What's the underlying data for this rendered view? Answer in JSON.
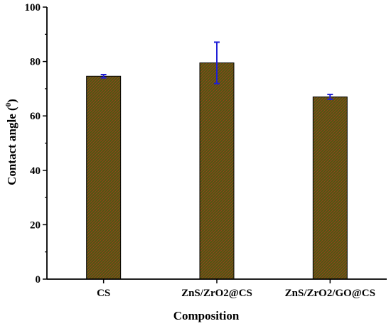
{
  "chart_data": {
    "type": "bar",
    "title": "",
    "xlabel": "Composition",
    "ylabel_main": "Contact angle (",
    "ylabel_sup": "0",
    "ylabel_end": ")",
    "categories": [
      "CS",
      "ZnS/ZrO2@CS",
      "ZnS/ZrO2/GO@CS"
    ],
    "values": [
      74.6,
      79.5,
      67.0
    ],
    "errors": [
      0.6,
      7.6,
      0.9
    ],
    "ylim": [
      0,
      100
    ],
    "yticks": [
      0,
      20,
      40,
      60,
      80,
      100
    ],
    "grid": false,
    "legend": "none",
    "colors": {
      "bar_fill": "#4a5a12",
      "bar_hatch": "#a83a1e",
      "bar_edge": "#000000",
      "error_bar": "#1f1fd6",
      "axis": "#000000"
    }
  }
}
